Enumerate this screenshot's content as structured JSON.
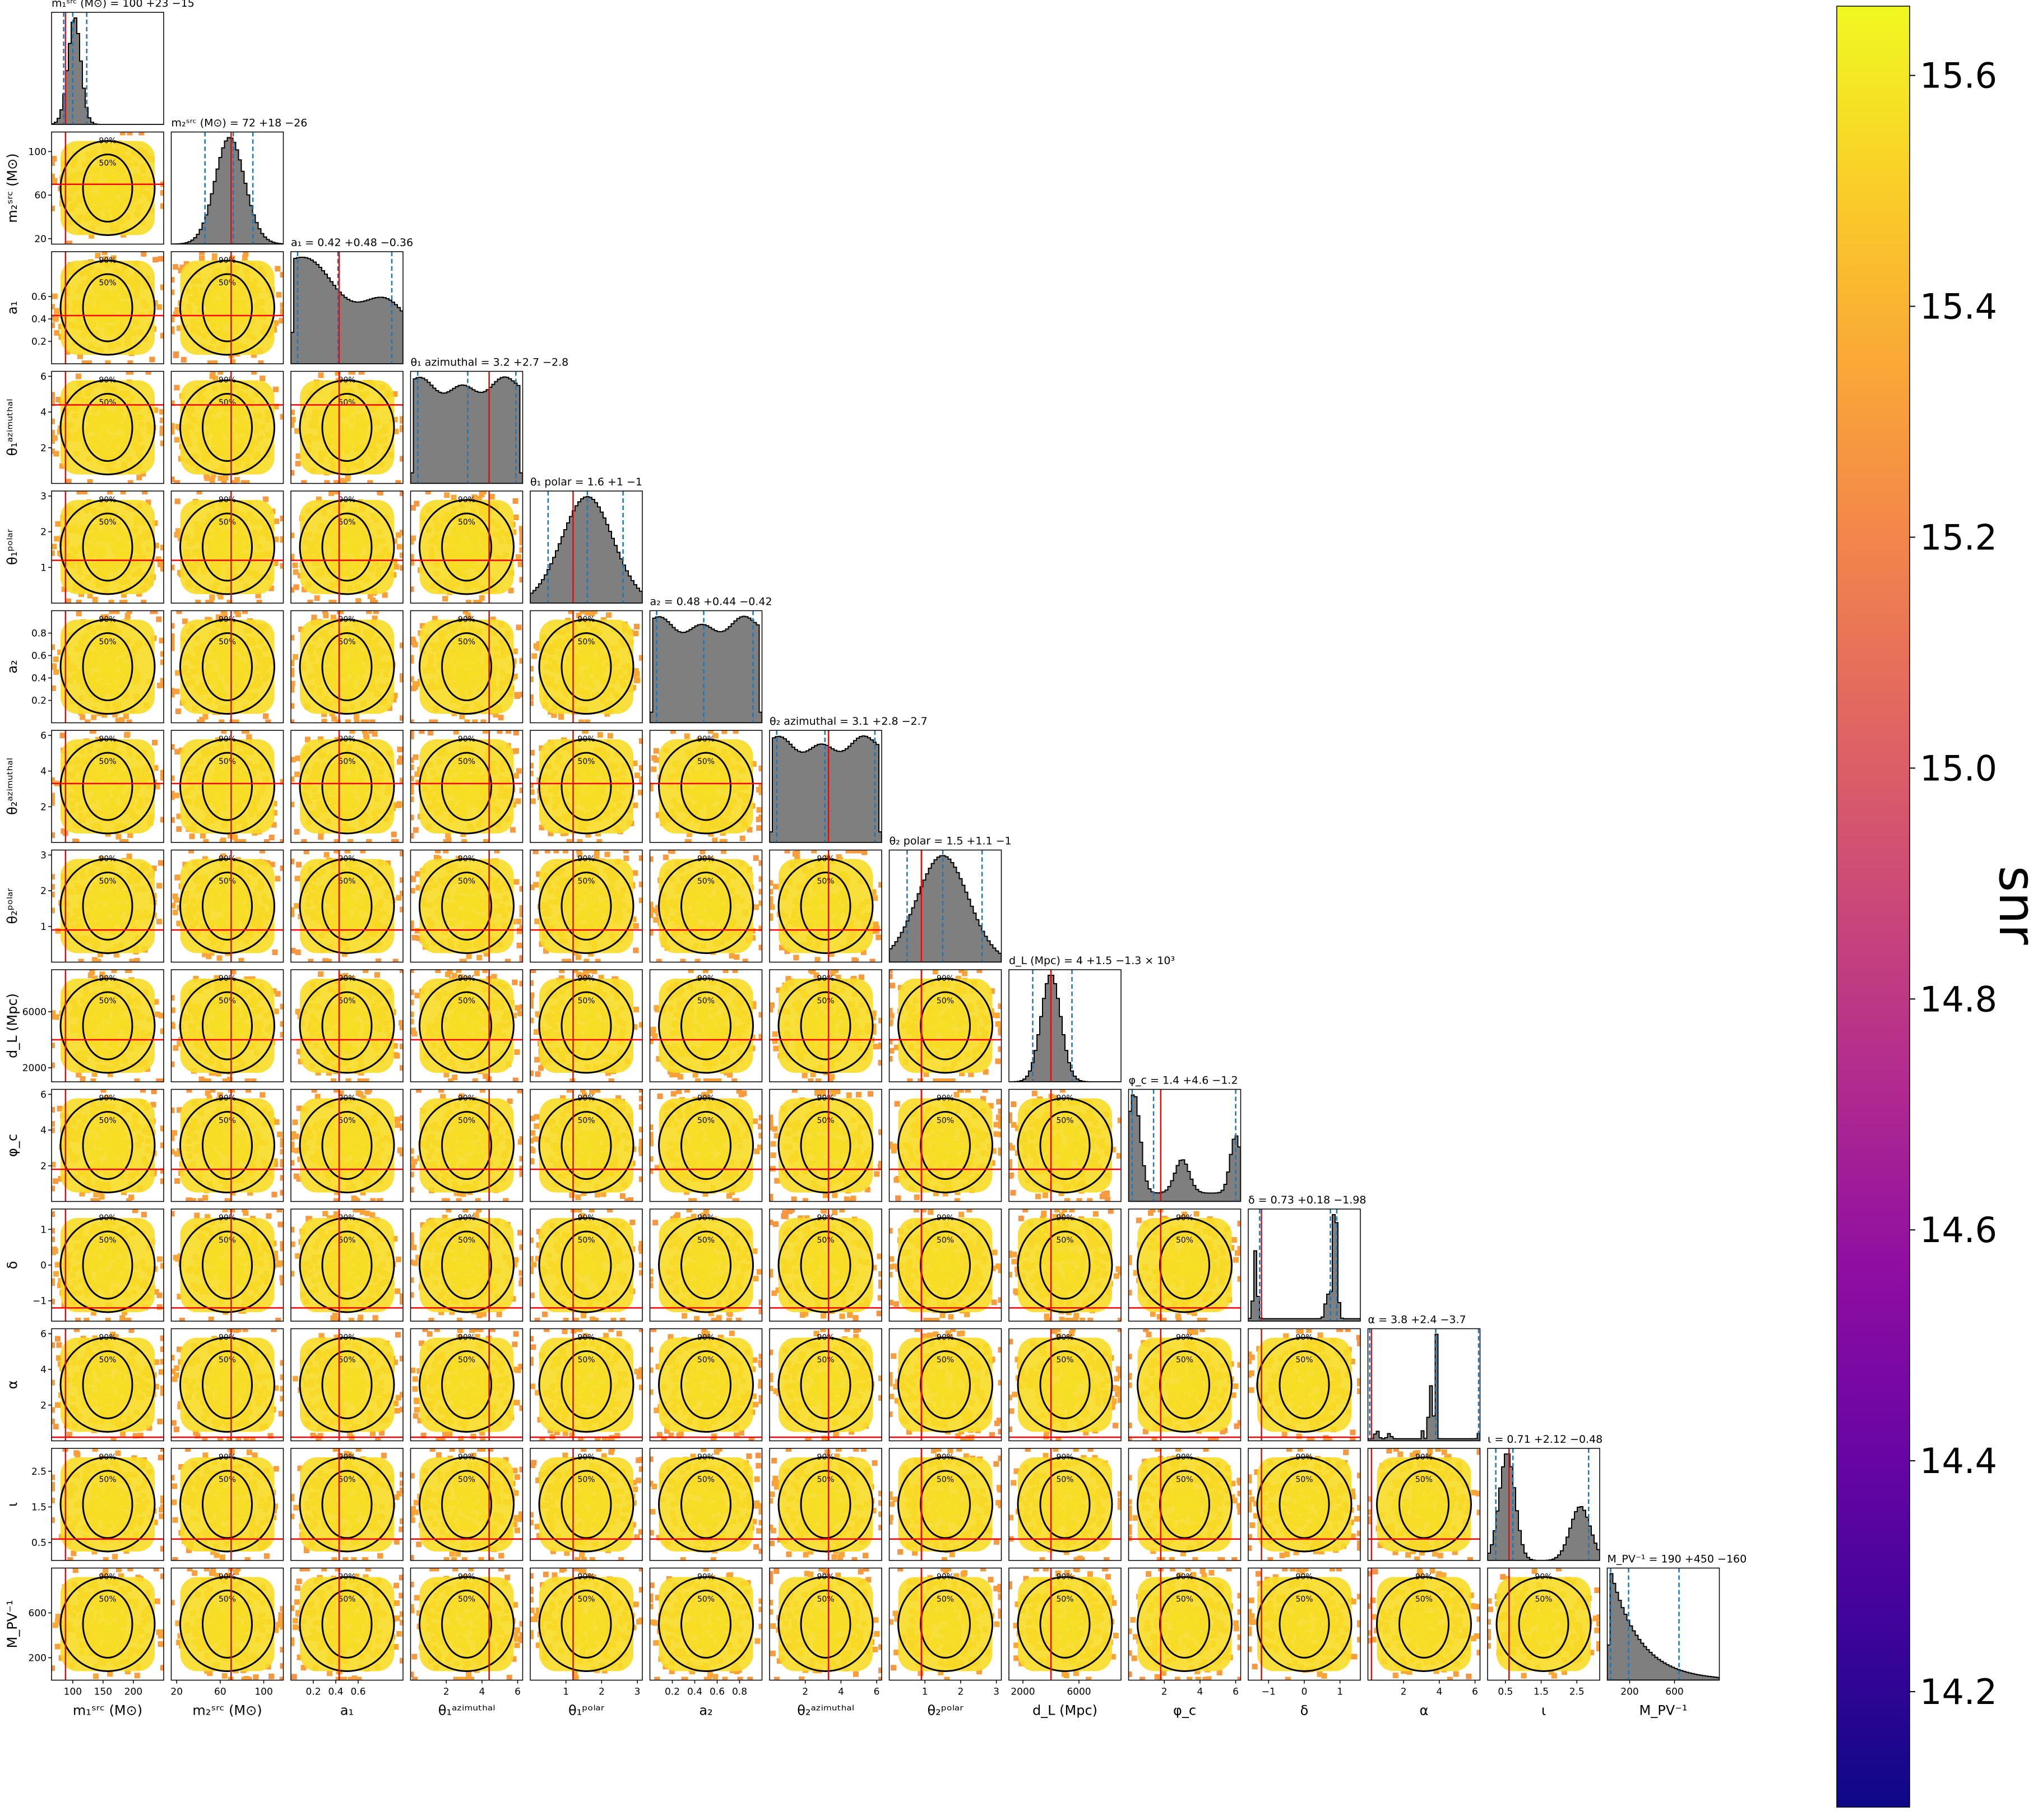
{
  "chart_data": {
    "type": "corner",
    "params": [
      {
        "key": "m1",
        "label": "m₁ˢʳᶜ (M⊙)",
        "title": "m₁ˢʳᶜ (M⊙) = 100 +23 −15",
        "range": [
          65,
          250
        ],
        "ticks": [
          100,
          150,
          200
        ],
        "tick_labels": [
          "100",
          "150",
          "200"
        ],
        "median": 100,
        "lo": 85,
        "hi": 123,
        "truth": 88,
        "sigma": 11,
        "skew": 0.6,
        "hist_mode": "peak"
      },
      {
        "key": "m2",
        "label": "m₂ˢʳᶜ (M⊙)",
        "title": "m₂ˢʳᶜ (M⊙) = 72 +18 −26",
        "range": [
          15,
          118
        ],
        "ticks": [
          20,
          60,
          100
        ],
        "tick_labels": [
          "20",
          "60",
          "100"
        ],
        "median": 72,
        "lo": 46,
        "hi": 90,
        "truth": 70,
        "sigma": 14,
        "skew": -0.5,
        "hist_mode": "peak"
      },
      {
        "key": "a1",
        "label": "a₁",
        "title": "a₁ = 0.42 +0.48 −0.36",
        "range": [
          0,
          1
        ],
        "ticks": [
          0.2,
          0.4,
          0.6
        ],
        "tick_labels": [
          "0.2",
          "0.4",
          "0.6"
        ],
        "median": 0.42,
        "lo": 0.06,
        "hi": 0.9,
        "truth": 0.43,
        "hist_mode": "decline"
      },
      {
        "key": "th1a",
        "label": "θ₁ᵃᶻⁱᵐᵘᵗʰᵃˡ",
        "title": "θ₁ azimuthal = 3.2 +2.7 −2.8",
        "range": [
          0,
          6.28
        ],
        "ticks": [
          2,
          4,
          6
        ],
        "tick_labels": [
          "2",
          "4",
          "6"
        ],
        "median": 3.2,
        "lo": 0.4,
        "hi": 5.9,
        "truth": 4.4,
        "hist_mode": "flat"
      },
      {
        "key": "th1p",
        "label": "θ₁ᵖᵒˡᵃʳ",
        "title": "θ₁ polar = 1.6 +1 −1",
        "range": [
          0,
          3.14
        ],
        "ticks": [
          1,
          2,
          3
        ],
        "tick_labels": [
          "1",
          "2",
          "3"
        ],
        "median": 1.6,
        "lo": 0.5,
        "hi": 2.6,
        "truth": 1.2,
        "sigma": 0.6,
        "hist_mode": "sine"
      },
      {
        "key": "a2",
        "label": "a₂",
        "title": "a₂ = 0.48 +0.44 −0.42",
        "range": [
          0,
          1
        ],
        "ticks": [
          0.2,
          0.4,
          0.6,
          0.8
        ],
        "tick_labels": [
          "0.2",
          "0.4",
          "0.6",
          "0.8"
        ],
        "median": 0.48,
        "lo": 0.06,
        "hi": 0.92,
        "truth": null,
        "hist_mode": "flat"
      },
      {
        "key": "th2a",
        "label": "θ₂ᵃᶻⁱᵐᵘᵗʰᵃˡ",
        "title": "θ₂ azimuthal = 3.1 +2.8 −2.7",
        "range": [
          0,
          6.28
        ],
        "ticks": [
          2,
          4,
          6
        ],
        "tick_labels": [
          "2",
          "4",
          "6"
        ],
        "median": 3.1,
        "lo": 0.4,
        "hi": 5.9,
        "truth": 3.3,
        "hist_mode": "flat"
      },
      {
        "key": "th2p",
        "label": "θ₂ᵖᵒˡᵃʳ",
        "title": "θ₂ polar = 1.5 +1.1 −1",
        "range": [
          0,
          3.14
        ],
        "ticks": [
          1,
          2,
          3
        ],
        "tick_labels": [
          "1",
          "2",
          "3"
        ],
        "median": 1.5,
        "lo": 0.5,
        "hi": 2.6,
        "truth": 0.9,
        "sigma": 0.6,
        "hist_mode": "sine"
      },
      {
        "key": "dL",
        "label": "d_L (Mpc)",
        "title": "d_L (Mpc) = 4 +1.5 −1.3 × 10³",
        "range": [
          1000,
          9000
        ],
        "ticks": [
          2000,
          6000
        ],
        "tick_labels": [
          "2000",
          "6000"
        ],
        "median": 4000,
        "lo": 2700,
        "hi": 5500,
        "truth": 4000,
        "sigma": 700,
        "hist_mode": "peak"
      },
      {
        "key": "phic",
        "label": "φ_c",
        "title": "φ_c = 1.4 +4.6 −1.2",
        "range": [
          0,
          6.28
        ],
        "ticks": [
          2,
          4,
          6
        ],
        "tick_labels": [
          "2",
          "4",
          "6"
        ],
        "median": 1.4,
        "lo": 0.2,
        "hi": 6.0,
        "truth": 1.8,
        "hist_mode": "multi_phi"
      },
      {
        "key": "delta",
        "label": "δ",
        "title": "δ = 0.73 +0.18 −1.98",
        "range": [
          -1.57,
          1.57
        ],
        "ticks": [
          -1,
          0,
          1
        ],
        "tick_labels": [
          "−1",
          "0",
          "1"
        ],
        "median": 0.73,
        "lo": -1.25,
        "hi": 0.91,
        "truth": -1.2,
        "hist_mode": "bimodal_delta"
      },
      {
        "key": "alpha",
        "label": "α",
        "title": "α = 3.8 +2.4 −3.7",
        "range": [
          0,
          6.28
        ],
        "ticks": [
          2,
          4,
          6
        ],
        "tick_labels": [
          "2",
          "4",
          "6"
        ],
        "median": 3.8,
        "lo": 0.1,
        "hi": 6.2,
        "truth": 0.2,
        "hist_mode": "spiky_alpha"
      },
      {
        "key": "iota",
        "label": "ι",
        "title": "ι = 0.71 +2.12 −0.48",
        "range": [
          0,
          3.14
        ],
        "ticks": [
          0.5,
          1.5,
          2.5
        ],
        "tick_labels": [
          "0.5",
          "1.5",
          "2.5"
        ],
        "median": 0.71,
        "lo": 0.23,
        "hi": 2.83,
        "truth": 0.6,
        "hist_mode": "bimodal_iota"
      },
      {
        "key": "Mpv",
        "label": "M_PV⁻¹",
        "title": "M_PV⁻¹ = 190 +450 −160",
        "range": [
          0,
          1000
        ],
        "ticks": [
          200,
          600
        ],
        "tick_labels": [
          "200",
          "600"
        ],
        "median": 190,
        "lo": 30,
        "hi": 640,
        "truth": null,
        "hist_mode": "decay"
      }
    ],
    "contour_levels": [
      "50%",
      "90%"
    ],
    "colorbar": {
      "label": "snr",
      "range": [
        14.1,
        15.66
      ],
      "ticks": [
        14.2,
        14.4,
        14.6,
        14.8,
        15.0,
        15.2,
        15.4,
        15.6
      ],
      "tick_labels": [
        "14.2",
        "14.4",
        "14.6",
        "14.8",
        "15.0",
        "15.2",
        "15.4",
        "15.6"
      ],
      "colormap": "plasma"
    },
    "colors": {
      "hist_fill": "#7f7f7f",
      "hist_edge": "#000000",
      "quantile_line": "#1f77b4",
      "truth_line": "#ff0000",
      "contour": "#000000"
    }
  }
}
